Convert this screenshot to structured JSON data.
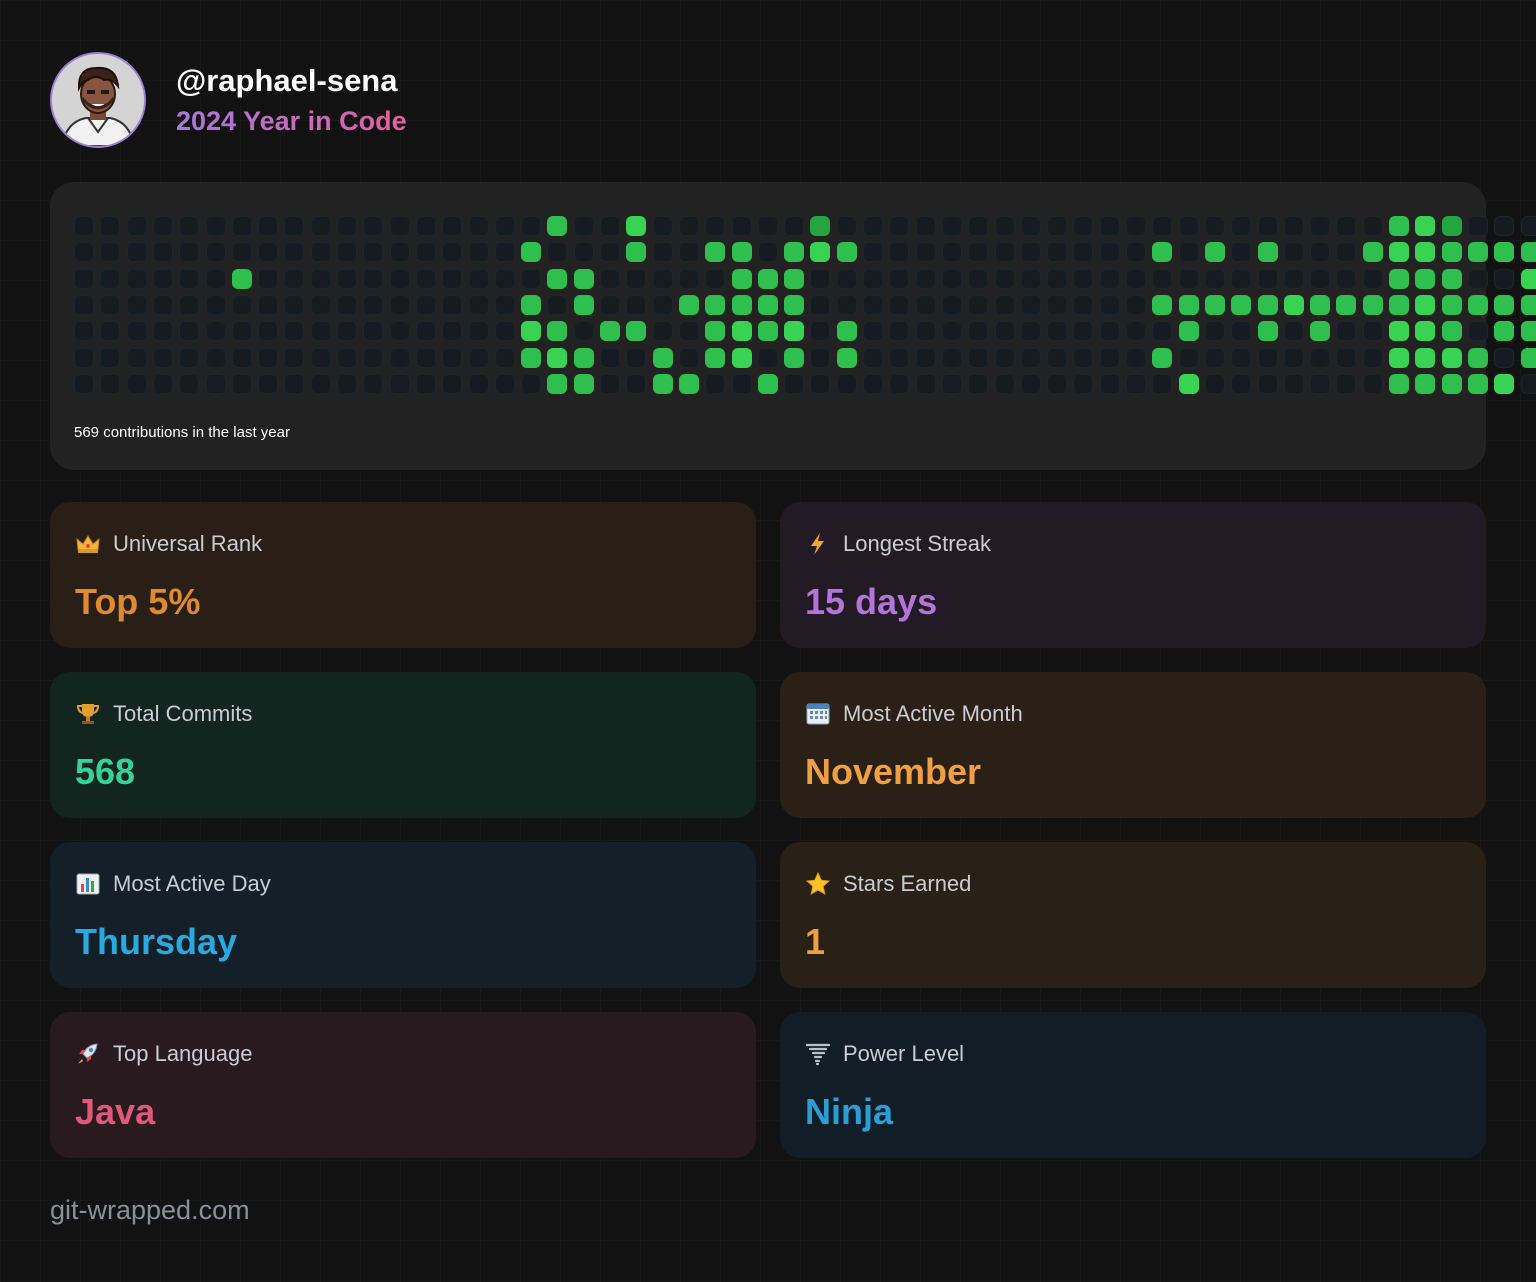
{
  "header": {
    "username": "@raphael-sena",
    "subtitle": "2024 Year in Code"
  },
  "contributions": {
    "caption": "569 contributions in the last year",
    "grid": [
      "00000000000000000020030000001000000000000000000000231000",
      "00000000000000000200020022023200000000000202020002332222",
      "00000020000000000022000002220000000000000000000000222003",
      "00000000000000000202000222220000000000000222223222232222",
      "00000000000000000320220023230200000000000020020200332022",
      "00000000000000000232002023020200000000000200000000333202",
      "00000000000000000022002200200000000000000030000000222230"
    ],
    "colors": {
      "0": "#161b22",
      "1": "#26a641",
      "2": "#2fbf4e",
      "3": "#39d353"
    }
  },
  "stats": [
    {
      "icon": "crown-icon",
      "label": "Universal Rank",
      "value": "Top 5%",
      "color": "#e08a2e",
      "bg": "#2a1f16"
    },
    {
      "icon": "lightning-icon",
      "label": "Longest Streak",
      "value": "15 days",
      "color": "#b574d8",
      "bg": "#221b26"
    },
    {
      "icon": "trophy-icon",
      "label": "Total Commits",
      "value": "568",
      "color": "#34d399",
      "bg": "#12261f"
    },
    {
      "icon": "calendar-icon",
      "label": "Most Active Month",
      "value": "November",
      "color": "#f0a040",
      "bg": "#2a2016"
    },
    {
      "icon": "bar-chart-icon",
      "label": "Most Active Day",
      "value": "Thursday",
      "color": "#28aadf",
      "bg": "#13202a"
    },
    {
      "icon": "star-icon",
      "label": "Stars Earned",
      "value": "1",
      "color": "#f0a040",
      "bg": "#292016"
    },
    {
      "icon": "rocket-icon",
      "label": "Top Language",
      "value": "Java",
      "color": "#e0587c",
      "bg": "#291a1f"
    },
    {
      "icon": "tornado-icon",
      "label": "Power Level",
      "value": "Ninja",
      "color": "#2a9fd6",
      "bg": "#121e27"
    }
  ],
  "footer": {
    "text": "git-wrapped.com"
  }
}
